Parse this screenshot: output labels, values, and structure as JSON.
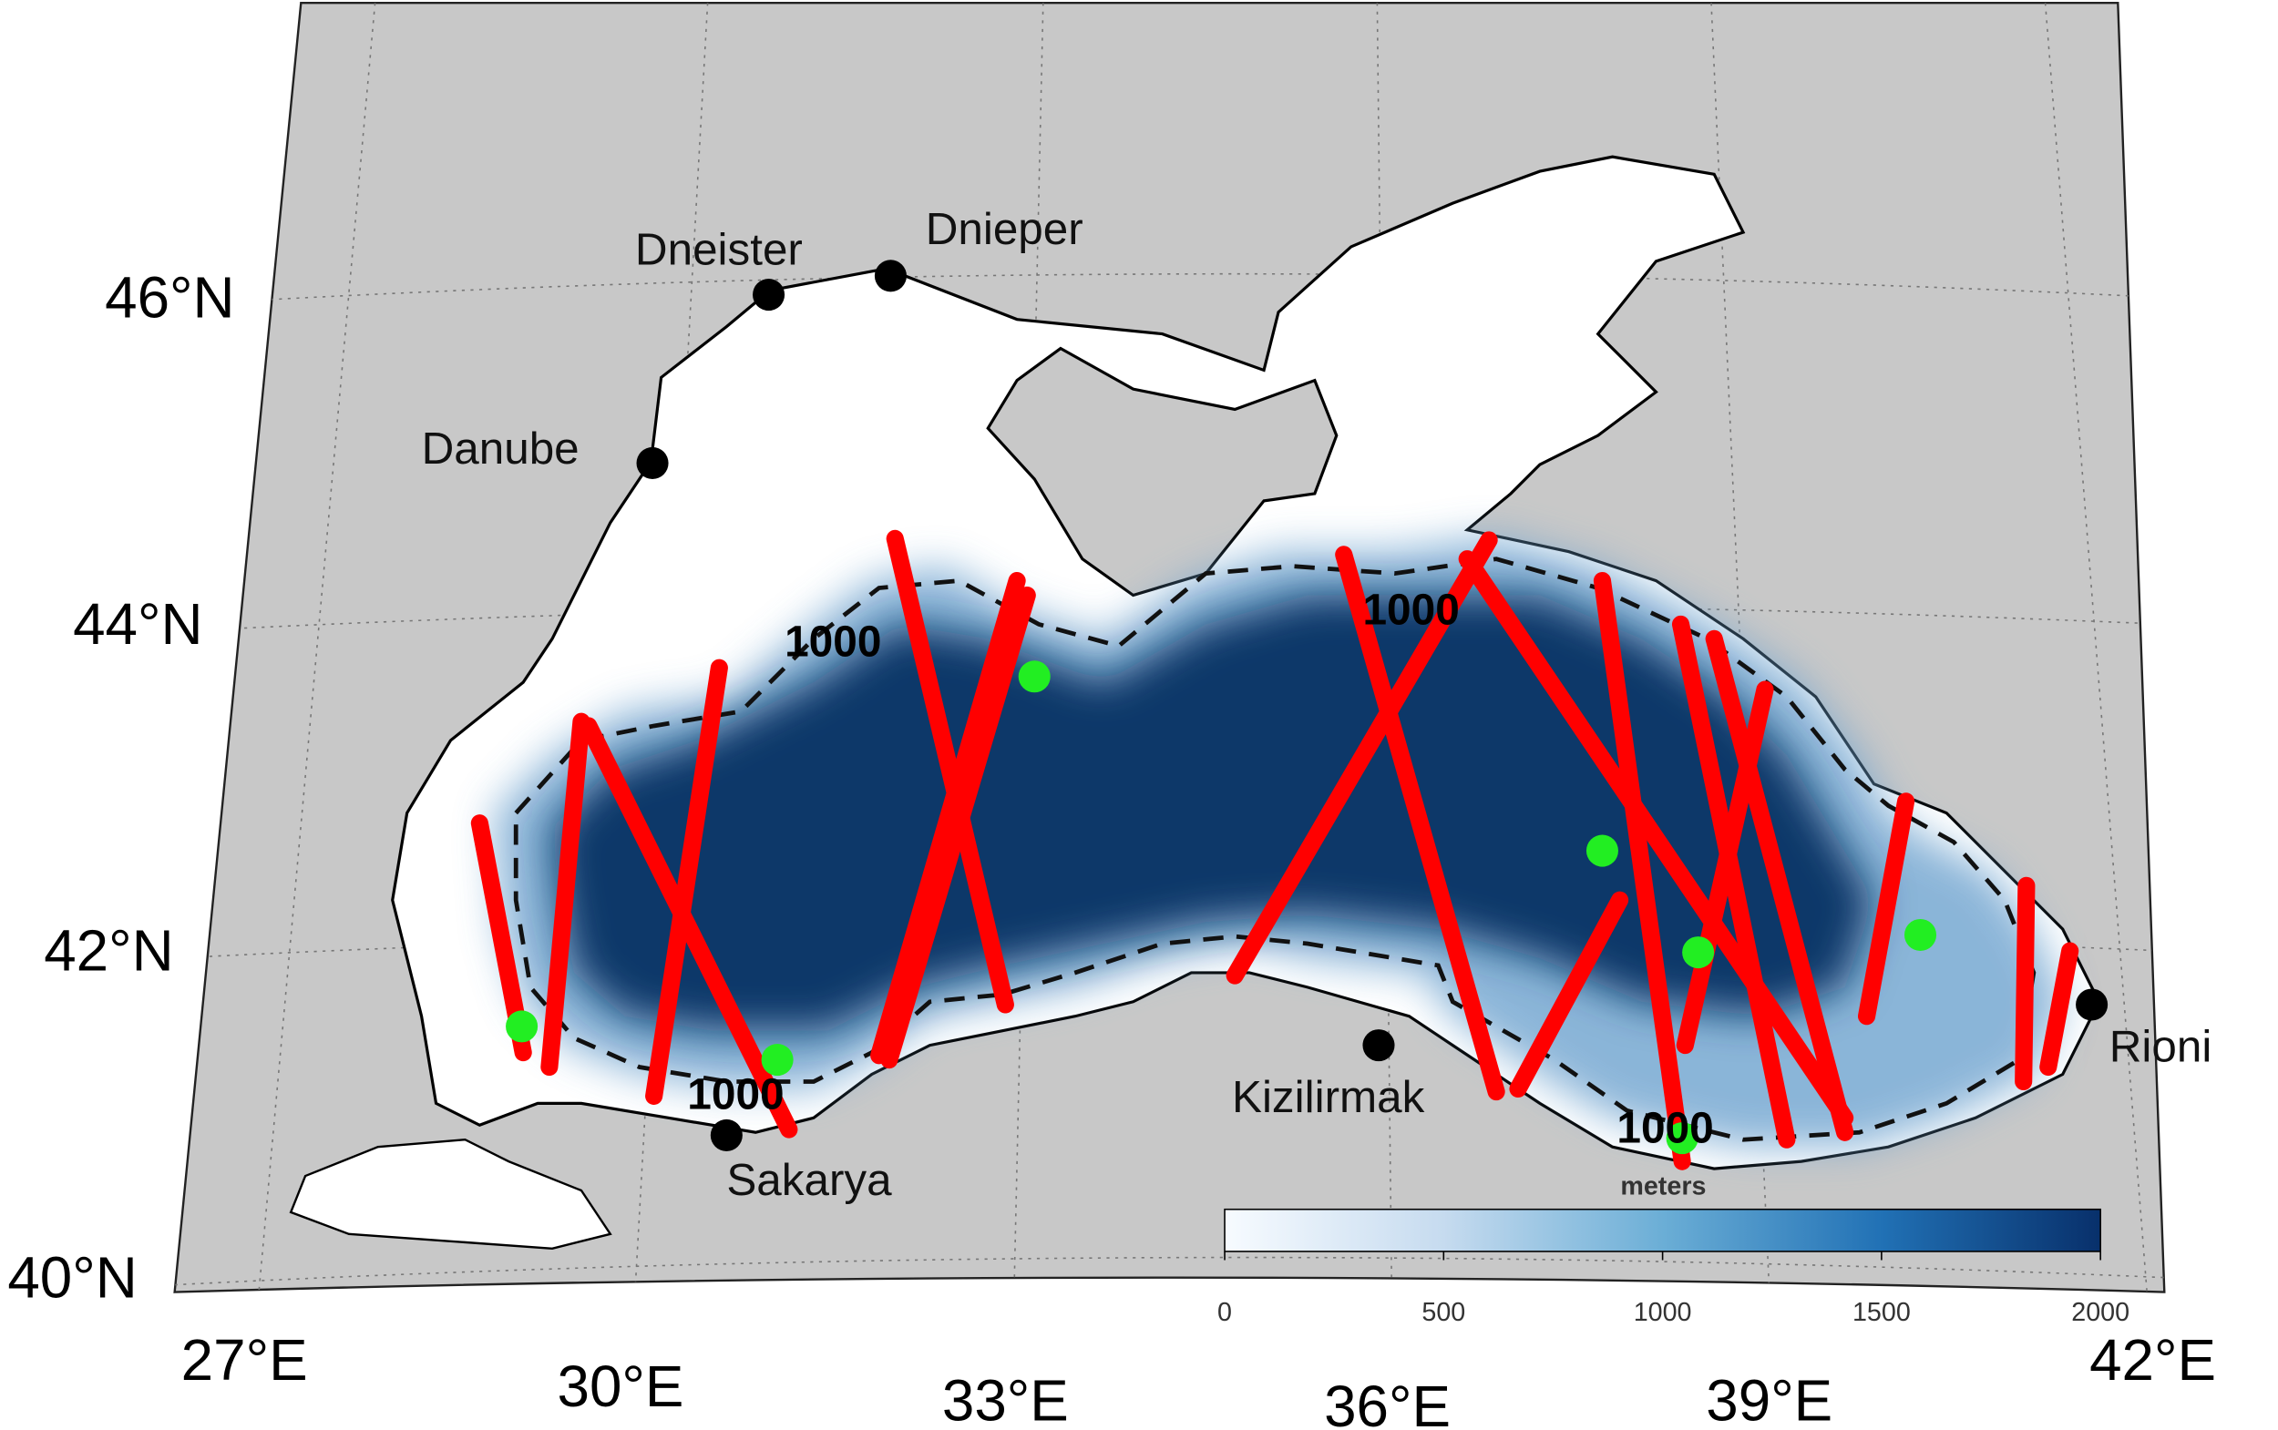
{
  "map": {
    "latitude_labels": [
      "46°N",
      "44°N",
      "42°N",
      "40°N"
    ],
    "longitude_labels": [
      "27°E",
      "30°E",
      "33°E",
      "36°E",
      "39°E",
      "42°E"
    ],
    "rivers": [
      "Dneister",
      "Dnieper",
      "Danube",
      "Sakarya",
      "Kizilirmak",
      "Rioni"
    ],
    "contour_labels": [
      "1000",
      "1000",
      "1000",
      "1000"
    ],
    "colorbar": {
      "label": "meters",
      "range": [
        0,
        2000
      ],
      "ticks": [
        0,
        500,
        1000,
        1500,
        2000
      ]
    }
  }
}
